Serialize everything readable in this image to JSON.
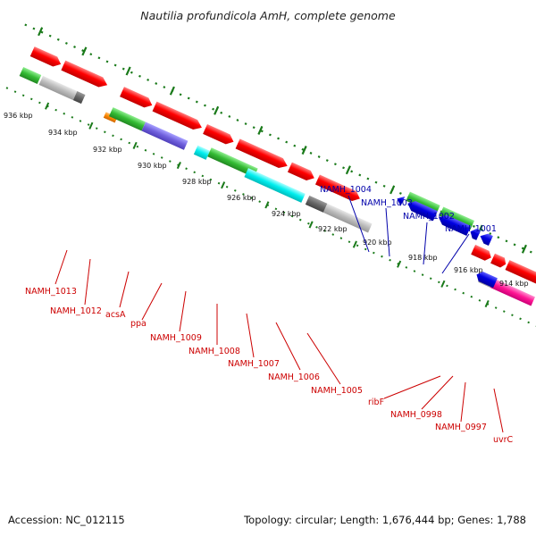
{
  "title": "Nautilia profundicola AmH, complete genome",
  "footer": {
    "accession": "Accession: NC_012115",
    "summary": "Topology: circular; Length: 1,676,444 bp; Genes: 1,788"
  },
  "colors": {
    "forward_strand_gene": "#ff0000",
    "reverse_strand_gene": "#0000dd",
    "ruler": "#1a7a1a",
    "backbone": "#888888",
    "forward_gene_label": "#cc0000",
    "reverse_gene_label": "#0000aa"
  },
  "ruler_labels": [
    "936 kbp",
    "934 kbp",
    "932 kbp",
    "930 kbp",
    "928 kbp",
    "926 kbp",
    "924 kbp",
    "922 kbp",
    "920 kbp",
    "918 kbp",
    "916 kbp",
    "914 kbp"
  ],
  "gene_labels": {
    "reverse": [
      "NAMH_1004",
      "NAMH_1003",
      "NAMH_1002",
      "NAMH_1001"
    ],
    "forward": [
      "NAMH_1013",
      "NAMH_1012",
      "acsA",
      "ppa",
      "NAMH_1009",
      "NAMH_1008",
      "NAMH_1007",
      "NAMH_1006",
      "NAMH_1005",
      "ribF",
      "NAMH_0998",
      "NAMH_0997",
      "uvrC"
    ]
  }
}
